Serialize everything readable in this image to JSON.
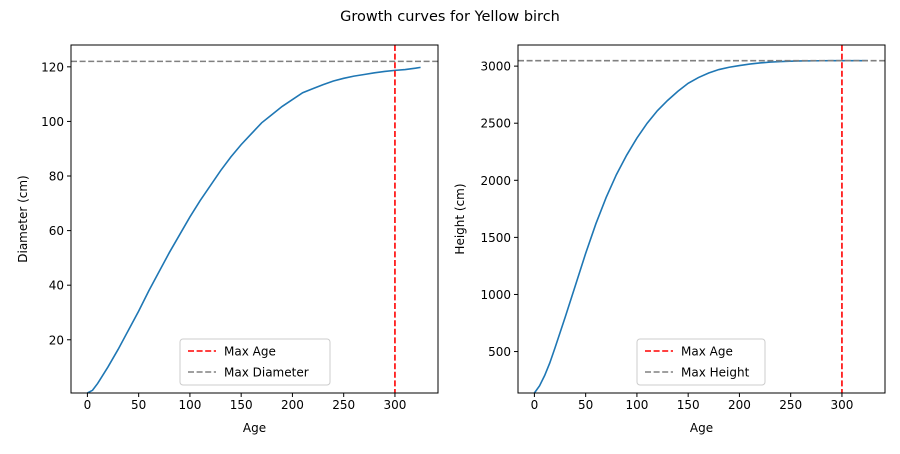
{
  "figure": {
    "title": "Growth curves for Yellow birch"
  },
  "chart_data": [
    {
      "type": "line",
      "xlabel": "Age",
      "ylabel": "Diameter (cm)",
      "xlim": [
        -16,
        342
      ],
      "ylim": [
        0.5,
        128
      ],
      "xticks": [
        0,
        50,
        100,
        150,
        200,
        250,
        300
      ],
      "yticks": [
        20,
        40,
        60,
        80,
        100,
        120
      ],
      "grid": false,
      "legend_position": "lower center",
      "series": [
        {
          "color": "#1f77b4",
          "x": [
            0,
            5,
            10,
            20,
            30,
            40,
            50,
            60,
            70,
            80,
            90,
            100,
            110,
            120,
            130,
            140,
            150,
            160,
            170,
            180,
            190,
            200,
            210,
            220,
            230,
            240,
            250,
            260,
            270,
            280,
            290,
            300,
            310,
            320,
            325
          ],
          "y": [
            0.5,
            1.5,
            4,
            10,
            16.5,
            23.5,
            30.5,
            38,
            45,
            52,
            58.5,
            65,
            71,
            76.5,
            82,
            87,
            91.5,
            95.5,
            99.5,
            102.5,
            105.5,
            108,
            110.5,
            112,
            113.5,
            114.8,
            115.8,
            116.6,
            117.2,
            117.8,
            118.3,
            118.7,
            119,
            119.5,
            119.8
          ]
        }
      ],
      "reference_lines": [
        {
          "label": "Max Age",
          "orientation": "vertical",
          "value": 300,
          "color": "#ff0000"
        },
        {
          "label": "Max Diameter",
          "orientation": "horizontal",
          "value": 122,
          "color": "#808080"
        }
      ]
    },
    {
      "type": "line",
      "xlabel": "Age",
      "ylabel": "Height (cm)",
      "xlim": [
        -16,
        342
      ],
      "ylim": [
        137,
        3185
      ],
      "xticks": [
        0,
        50,
        100,
        150,
        200,
        250,
        300
      ],
      "yticks": [
        500,
        1000,
        1500,
        2000,
        2500,
        3000
      ],
      "grid": false,
      "legend_position": "lower center",
      "series": [
        {
          "color": "#1f77b4",
          "x": [
            0,
            5,
            10,
            15,
            20,
            30,
            40,
            50,
            60,
            70,
            80,
            90,
            100,
            110,
            120,
            130,
            140,
            150,
            160,
            170,
            180,
            190,
            200,
            210,
            220,
            230,
            240,
            250,
            260,
            270,
            280,
            290,
            300,
            310,
            320,
            325
          ],
          "y": [
            137,
            200,
            290,
            400,
            530,
            800,
            1080,
            1360,
            1620,
            1850,
            2050,
            2220,
            2370,
            2500,
            2610,
            2700,
            2780,
            2850,
            2900,
            2940,
            2970,
            2990,
            3005,
            3018,
            3028,
            3035,
            3040,
            3043,
            3045,
            3046,
            3047,
            3048,
            3048,
            3048,
            3048,
            3048
          ]
        }
      ],
      "reference_lines": [
        {
          "label": "Max Age",
          "orientation": "vertical",
          "value": 300,
          "color": "#ff0000"
        },
        {
          "label": "Max Height",
          "orientation": "horizontal",
          "value": 3048,
          "color": "#808080"
        }
      ]
    }
  ]
}
